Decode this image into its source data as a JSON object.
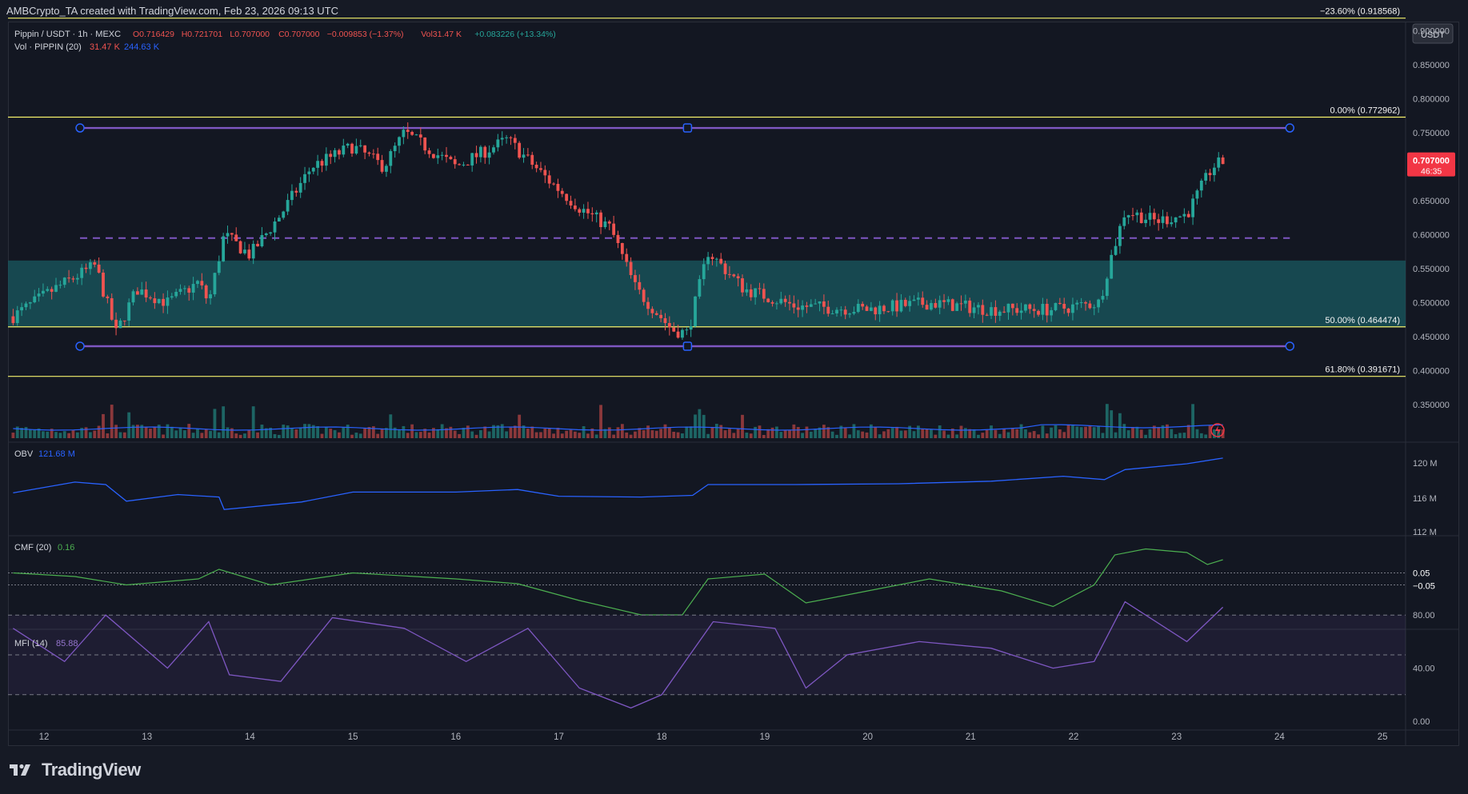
{
  "header": {
    "credit": "AMBCrypto_TA created with TradingView.com, Feb 23, 2026 09:13 UTC",
    "symbol": "Pippin / USDT · 1h · MEXC",
    "ohlc": {
      "o_label": "O",
      "o": "0.716429",
      "h_label": "H",
      "h": "0.721701",
      "l_label": "L",
      "l": "0.707000",
      "c_label": "C",
      "c": "0.707000",
      "change": "−0.009853 (−1.37%)",
      "vol_label": "Vol",
      "vol": "31.47 K",
      "vol_change": "+0.083226 (+13.34%)"
    },
    "volume_legend": {
      "label": "Vol · PIPPIN (20)",
      "v1": "31.47 K",
      "v2": "244.63 K"
    }
  },
  "price_axis": {
    "currency": "USDT",
    "ticks": [
      "0.900000",
      "0.850000",
      "0.800000",
      "0.750000",
      "0.700000",
      "0.650000",
      "0.600000",
      "0.550000",
      "0.500000",
      "0.450000",
      "0.400000",
      "0.350000"
    ],
    "last_price": "0.707000",
    "countdown": "46:35"
  },
  "fib_levels": [
    {
      "label": "−23.60% (0.918568)",
      "price": 0.918568
    },
    {
      "label": "0.00% (0.772962)",
      "price": 0.772962
    },
    {
      "label": "50.00% (0.464474)",
      "price": 0.464474
    },
    {
      "label": "61.80% (0.391671)",
      "price": 0.391671
    }
  ],
  "indicators": {
    "obv": {
      "label": "OBV",
      "value": "121.68 M",
      "ticks": [
        "120 M",
        "116 M",
        "112 M"
      ]
    },
    "cmf": {
      "label": "CMF (20)",
      "value": "0.16",
      "ticks": [
        "0.05",
        "−0.05"
      ]
    },
    "mfi": {
      "label": "MFI (14)",
      "value": "85.88",
      "ticks": [
        "80.00",
        "40.00",
        "0.00"
      ]
    }
  },
  "time_axis": [
    "12",
    "13",
    "14",
    "15",
    "16",
    "17",
    "18",
    "19",
    "20",
    "21",
    "22",
    "23",
    "24",
    "25"
  ],
  "footer": {
    "brand": "TradingView"
  },
  "colors": {
    "up": "#26a69a",
    "down": "#ef5350",
    "fib": "#f5f26b",
    "channel": "#7e57c2",
    "zone": "#1a5a60",
    "obv": "#2962ff",
    "cmf": "#4caf50",
    "mfi": "#7e57c2",
    "price_tag": "#f23645"
  },
  "chart_data": {
    "type": "candlestick",
    "title": "Pippin / USDT · 1h · MEXC",
    "ylim": [
      0.33,
      0.93
    ],
    "x_range_days": [
      "12",
      "25"
    ],
    "channel": {
      "top": 0.757,
      "mid": 0.595,
      "bottom": 0.436
    },
    "demand_zone": [
      0.464,
      0.562
    ],
    "price_path": [
      {
        "x": 11.7,
        "y": 0.48
      },
      {
        "x": 12.1,
        "y": 0.52
      },
      {
        "x": 12.5,
        "y": 0.555
      },
      {
        "x": 12.7,
        "y": 0.455
      },
      {
        "x": 12.9,
        "y": 0.52
      },
      {
        "x": 13.2,
        "y": 0.5
      },
      {
        "x": 13.5,
        "y": 0.53
      },
      {
        "x": 13.6,
        "y": 0.5
      },
      {
        "x": 13.75,
        "y": 0.6
      },
      {
        "x": 14.0,
        "y": 0.57
      },
      {
        "x": 14.3,
        "y": 0.63
      },
      {
        "x": 14.6,
        "y": 0.7
      },
      {
        "x": 15.0,
        "y": 0.73
      },
      {
        "x": 15.3,
        "y": 0.7
      },
      {
        "x": 15.5,
        "y": 0.75
      },
      {
        "x": 16.0,
        "y": 0.7
      },
      {
        "x": 16.5,
        "y": 0.74
      },
      {
        "x": 16.9,
        "y": 0.68
      },
      {
        "x": 17.2,
        "y": 0.64
      },
      {
        "x": 17.5,
        "y": 0.61
      },
      {
        "x": 17.75,
        "y": 0.52
      },
      {
        "x": 18.1,
        "y": 0.46
      },
      {
        "x": 18.25,
        "y": 0.455
      },
      {
        "x": 18.45,
        "y": 0.575
      },
      {
        "x": 18.8,
        "y": 0.52
      },
      {
        "x": 19.3,
        "y": 0.495
      },
      {
        "x": 20.0,
        "y": 0.49
      },
      {
        "x": 20.6,
        "y": 0.5
      },
      {
        "x": 21.2,
        "y": 0.49
      },
      {
        "x": 21.8,
        "y": 0.49
      },
      {
        "x": 22.25,
        "y": 0.5
      },
      {
        "x": 22.35,
        "y": 0.56
      },
      {
        "x": 22.5,
        "y": 0.635
      },
      {
        "x": 22.8,
        "y": 0.62
      },
      {
        "x": 23.1,
        "y": 0.63
      },
      {
        "x": 23.35,
        "y": 0.7
      },
      {
        "x": 23.45,
        "y": 0.707
      }
    ],
    "obv_path": [
      {
        "x": 11.7,
        "y": 117.5
      },
      {
        "x": 12.3,
        "y": 118.8
      },
      {
        "x": 12.6,
        "y": 118.5
      },
      {
        "x": 12.8,
        "y": 116.5
      },
      {
        "x": 13.3,
        "y": 117.3
      },
      {
        "x": 13.7,
        "y": 117.0
      },
      {
        "x": 13.75,
        "y": 115.5
      },
      {
        "x": 14.5,
        "y": 116.4
      },
      {
        "x": 15.0,
        "y": 117.6
      },
      {
        "x": 16.0,
        "y": 117.6
      },
      {
        "x": 16.6,
        "y": 117.9
      },
      {
        "x": 17.0,
        "y": 117.1
      },
      {
        "x": 17.8,
        "y": 117.0
      },
      {
        "x": 18.3,
        "y": 117.2
      },
      {
        "x": 18.45,
        "y": 118.5
      },
      {
        "x": 19.3,
        "y": 118.5
      },
      {
        "x": 20.3,
        "y": 118.6
      },
      {
        "x": 21.2,
        "y": 118.9
      },
      {
        "x": 21.9,
        "y": 119.5
      },
      {
        "x": 22.3,
        "y": 119.1
      },
      {
        "x": 22.5,
        "y": 120.3
      },
      {
        "x": 23.1,
        "y": 121.0
      },
      {
        "x": 23.45,
        "y": 121.68
      }
    ],
    "cmf_path": [
      {
        "x": 11.7,
        "y": 0.05
      },
      {
        "x": 12.3,
        "y": 0.02
      },
      {
        "x": 12.8,
        "y": -0.05
      },
      {
        "x": 13.5,
        "y": 0.0
      },
      {
        "x": 13.7,
        "y": 0.08
      },
      {
        "x": 14.2,
        "y": -0.05
      },
      {
        "x": 15.0,
        "y": 0.05
      },
      {
        "x": 16.0,
        "y": 0.0
      },
      {
        "x": 16.6,
        "y": -0.04
      },
      {
        "x": 17.2,
        "y": -0.18
      },
      {
        "x": 17.8,
        "y": -0.3
      },
      {
        "x": 18.2,
        "y": -0.3
      },
      {
        "x": 18.45,
        "y": 0.0
      },
      {
        "x": 19.0,
        "y": 0.04
      },
      {
        "x": 19.4,
        "y": -0.2
      },
      {
        "x": 20.0,
        "y": -0.1
      },
      {
        "x": 20.6,
        "y": 0.0
      },
      {
        "x": 21.3,
        "y": -0.1
      },
      {
        "x": 21.8,
        "y": -0.23
      },
      {
        "x": 22.2,
        "y": -0.05
      },
      {
        "x": 22.4,
        "y": 0.2
      },
      {
        "x": 22.7,
        "y": 0.25
      },
      {
        "x": 23.1,
        "y": 0.22
      },
      {
        "x": 23.3,
        "y": 0.12
      },
      {
        "x": 23.45,
        "y": 0.16
      }
    ],
    "mfi_path": [
      {
        "x": 11.7,
        "y": 70
      },
      {
        "x": 12.2,
        "y": 45
      },
      {
        "x": 12.6,
        "y": 80
      },
      {
        "x": 13.2,
        "y": 40
      },
      {
        "x": 13.6,
        "y": 75
      },
      {
        "x": 13.8,
        "y": 35
      },
      {
        "x": 14.3,
        "y": 30
      },
      {
        "x": 14.8,
        "y": 78
      },
      {
        "x": 15.5,
        "y": 70
      },
      {
        "x": 16.1,
        "y": 45
      },
      {
        "x": 16.7,
        "y": 70
      },
      {
        "x": 17.2,
        "y": 25
      },
      {
        "x": 17.7,
        "y": 10
      },
      {
        "x": 18.0,
        "y": 20
      },
      {
        "x": 18.5,
        "y": 75
      },
      {
        "x": 19.1,
        "y": 70
      },
      {
        "x": 19.4,
        "y": 25
      },
      {
        "x": 19.8,
        "y": 50
      },
      {
        "x": 20.5,
        "y": 60
      },
      {
        "x": 21.2,
        "y": 55
      },
      {
        "x": 21.8,
        "y": 40
      },
      {
        "x": 22.2,
        "y": 45
      },
      {
        "x": 22.5,
        "y": 90
      },
      {
        "x": 23.1,
        "y": 60
      },
      {
        "x": 23.45,
        "y": 85.88
      }
    ]
  }
}
